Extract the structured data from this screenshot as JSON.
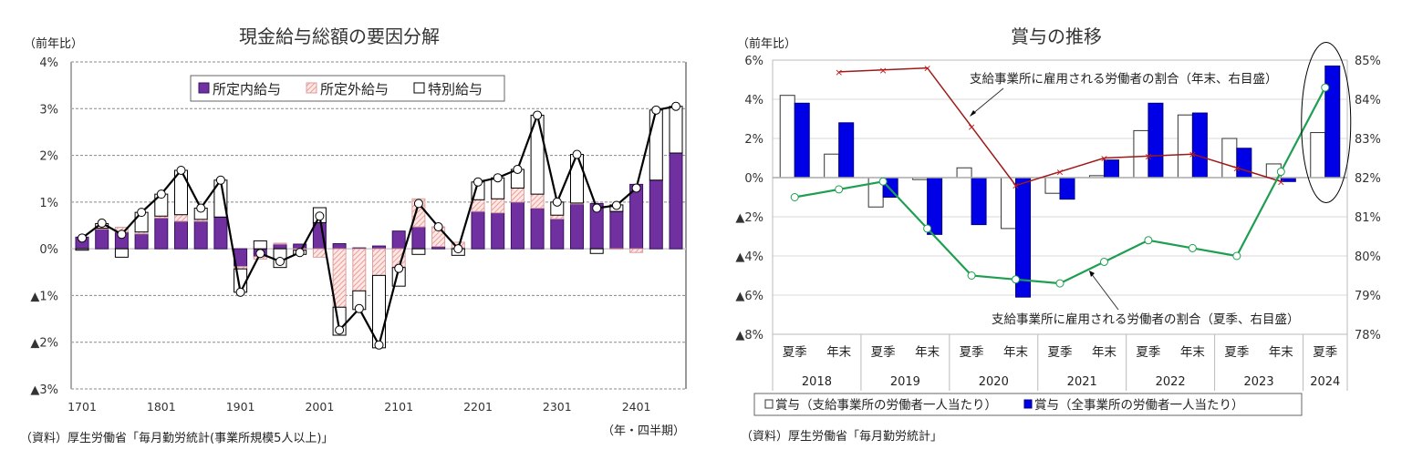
{
  "chart_data": [
    {
      "type": "bar",
      "stacked": true,
      "title": "現金給与総額の要因分解",
      "ylabel": "（前年比）",
      "xlabel": "（年・四半期）",
      "source": "（資料）厚生労働省「毎月勤労統計(事業所規模5人以上)」",
      "ylim": [
        -3,
        4
      ],
      "yticks": [
        4,
        3,
        2,
        1,
        0,
        -1,
        -2,
        -3
      ],
      "ytick_labels": [
        "4%",
        "3%",
        "2%",
        "1%",
        "0%",
        "▲1%",
        "▲2%",
        "▲3%"
      ],
      "xtick_labels": [
        "1701",
        "1801",
        "1901",
        "2001",
        "2101",
        "2201",
        "2301",
        "2401"
      ],
      "grid": true,
      "legend_position": "top-center",
      "categories": [
        "1701",
        "1702",
        "1703",
        "1704",
        "1801",
        "1802",
        "1803",
        "1804",
        "1901",
        "1902",
        "1903",
        "1904",
        "2001",
        "2002",
        "2003",
        "2004",
        "2101",
        "2102",
        "2103",
        "2104",
        "2201",
        "2202",
        "2203",
        "2204",
        "2301",
        "2302",
        "2303",
        "2304",
        "2401",
        "2402",
        "2403"
      ],
      "series": [
        {
          "name": "所定内給与",
          "kind": "bar",
          "color": "#7030a0",
          "values": [
            0.25,
            0.42,
            0.36,
            0.32,
            0.66,
            0.59,
            0.59,
            0.68,
            -0.38,
            -0.17,
            0.1,
            0.1,
            0.56,
            0.11,
            0.02,
            0.06,
            0.38,
            0.47,
            0.05,
            0.02,
            0.8,
            0.77,
            1.0,
            0.87,
            0.64,
            0.96,
            0.97,
            0.8,
            1.38,
            1.47,
            2.05
          ]
        },
        {
          "name": "所定外給与",
          "kind": "bar-hatched",
          "color": "#f4b6b0",
          "values": [
            0.0,
            0.02,
            0.1,
            0.04,
            0.04,
            0.14,
            0.04,
            0.0,
            -0.05,
            -0.05,
            0.02,
            -0.03,
            -0.18,
            -1.25,
            -0.9,
            -0.57,
            -0.4,
            0.6,
            0.42,
            0.12,
            0.25,
            0.3,
            0.3,
            0.3,
            0.08,
            0.02,
            0.0,
            -0.01,
            -0.08,
            0.0,
            0.0
          ]
        },
        {
          "name": "特別給与",
          "kind": "bar",
          "color": "#ffffff",
          "values": [
            -0.03,
            0.1,
            -0.18,
            0.42,
            0.47,
            0.95,
            0.24,
            0.79,
            -0.5,
            0.17,
            -0.4,
            -0.09,
            0.32,
            -0.6,
            -0.4,
            -1.55,
            -0.4,
            -0.12,
            0.0,
            -0.14,
            0.38,
            0.45,
            0.4,
            1.69,
            0.28,
            1.04,
            -0.1,
            0.14,
            0.0,
            1.5,
            1.0
          ]
        },
        {
          "name": "現金給与総額",
          "kind": "line",
          "color": "#000000",
          "values": [
            0.23,
            0.55,
            0.31,
            0.78,
            1.17,
            1.68,
            0.87,
            1.47,
            -0.93,
            -0.1,
            -0.27,
            -0.08,
            0.7,
            -1.74,
            -1.28,
            -2.06,
            -0.42,
            0.97,
            0.47,
            0.0,
            1.43,
            1.52,
            1.7,
            2.86,
            1.0,
            2.02,
            0.87,
            0.93,
            1.3,
            2.97,
            3.05
          ]
        }
      ],
      "legend": [
        "所定内給与",
        "所定外給与",
        "特別給与"
      ]
    },
    {
      "type": "bar",
      "title": "賞与の推移",
      "ylabel": "（前年比）",
      "source": "（資料）厚生労働省「毎月勤労統計」",
      "ylim": [
        -8,
        6
      ],
      "yticks": [
        6,
        4,
        2,
        0,
        -2,
        -4,
        -6,
        -8
      ],
      "ytick_labels": [
        "6%",
        "4%",
        "2%",
        "0%",
        "▲2%",
        "▲4%",
        "▲6%",
        "▲8%"
      ],
      "y2lim": [
        78,
        85
      ],
      "y2ticks": [
        85,
        84,
        83,
        82,
        81,
        80,
        79,
        78
      ],
      "y2tick_labels": [
        "85%",
        "84%",
        "83%",
        "82%",
        "81%",
        "80%",
        "79%",
        "78%"
      ],
      "grid": true,
      "legend_position": "bottom",
      "categories": [
        "夏季",
        "年末",
        "夏季",
        "年末",
        "夏季",
        "年末",
        "夏季",
        "年末",
        "夏季",
        "年末",
        "夏季",
        "年末",
        "夏季"
      ],
      "groups": [
        {
          "label": "2018",
          "count": 2
        },
        {
          "label": "2019",
          "count": 2
        },
        {
          "label": "2020",
          "count": 2
        },
        {
          "label": "2021",
          "count": 2
        },
        {
          "label": "2022",
          "count": 2
        },
        {
          "label": "2023",
          "count": 2
        },
        {
          "label": "2024",
          "count": 1
        }
      ],
      "series": [
        {
          "name": "賞与（支給事業所の労働者一人当たり）",
          "kind": "bar",
          "axis": "left",
          "color": "#ffffff",
          "values": [
            4.2,
            1.2,
            -1.5,
            -0.1,
            0.5,
            -2.6,
            -0.8,
            0.1,
            2.4,
            3.2,
            2.0,
            0.7,
            2.3
          ]
        },
        {
          "name": "賞与（全事業所の労働者一人当たり）",
          "kind": "bar",
          "axis": "left",
          "color": "#0000e6",
          "values": [
            3.8,
            2.8,
            -1.0,
            -2.9,
            -2.4,
            -6.1,
            -1.1,
            0.9,
            3.8,
            3.3,
            1.5,
            -0.2,
            5.7
          ]
        },
        {
          "name": "支給事業所に雇用される労働者の割合（夏季、右目盛）",
          "kind": "line",
          "axis": "right",
          "color": "#1e9e50",
          "values": [
            81.5,
            81.7,
            81.9,
            80.7,
            79.5,
            79.4,
            79.3,
            79.85,
            80.4,
            80.2,
            80.0,
            82.15,
            84.3
          ]
        },
        {
          "name": "支給事業所に雇用される労働者の割合（年末、右目盛）",
          "kind": "line",
          "axis": "right",
          "color": "#a01818",
          "values": [
            null,
            84.7,
            84.75,
            84.8,
            83.3,
            81.8,
            82.15,
            82.5,
            82.55,
            82.6,
            82.25,
            81.9,
            null
          ]
        }
      ],
      "annotations": [
        "支給事業所に雇用される労働者の割合（年末、右目盛）",
        "支給事業所に雇用される労働者の割合（夏季、右目盛）"
      ],
      "legend": [
        "賞与（支給事業所の労働者一人当たり）",
        "賞与（全事業所の労働者一人当たり）"
      ]
    }
  ]
}
